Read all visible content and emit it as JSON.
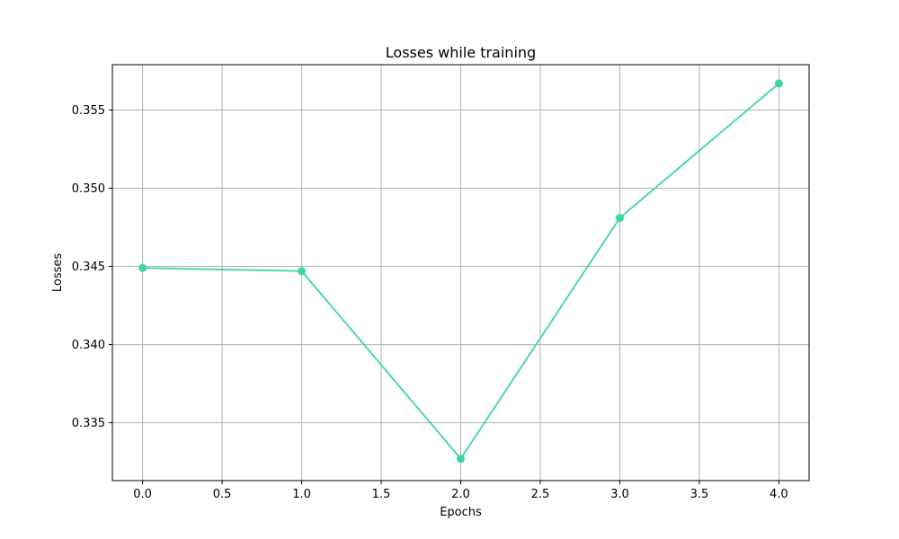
{
  "chart_data": {
    "type": "line",
    "title": "Losses while training",
    "xlabel": "Epochs",
    "ylabel": "Losses",
    "x": [
      0,
      1,
      2,
      3,
      4
    ],
    "series": [
      {
        "values": [
          0.3449,
          0.3447,
          0.3327,
          0.3481,
          0.3567
        ],
        "color": "#3dd69e",
        "marker": "circle"
      }
    ],
    "xlim": [
      -0.19,
      4.19
    ],
    "ylim": [
      0.3313,
      0.3579
    ],
    "xticks": [
      "0.0",
      "0.5",
      "1.0",
      "1.5",
      "2.0",
      "2.5",
      "3.0",
      "3.5",
      "4.0"
    ],
    "yticks": [
      "0.335",
      "0.340",
      "0.345",
      "0.350",
      "0.355"
    ],
    "grid": true
  }
}
